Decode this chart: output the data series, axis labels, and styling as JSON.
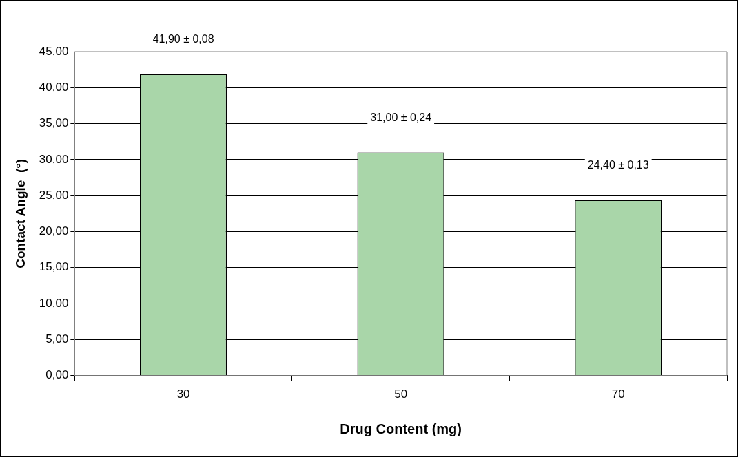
{
  "chart_data": {
    "type": "bar",
    "xlabel": "Drug Content (mg)",
    "ylabel": "Contact Angle  (°)",
    "categories": [
      "30",
      "50",
      "70"
    ],
    "values": [
      41.9,
      31.0,
      24.4
    ],
    "value_labels": [
      "41,90 ± 0,08",
      "31,00 ± 0,24",
      "24,40 ± 0,13"
    ],
    "color": "#a9d6a9",
    "ylim": [
      0,
      45
    ],
    "yticks": [
      {
        "value": 0,
        "label": "0,00"
      },
      {
        "value": 5,
        "label": "5,00"
      },
      {
        "value": 10,
        "label": "10,00"
      },
      {
        "value": 15,
        "label": "15,00"
      },
      {
        "value": 20,
        "label": "20,00"
      },
      {
        "value": 25,
        "label": "25,00"
      },
      {
        "value": 30,
        "label": "30,00"
      },
      {
        "value": 35,
        "label": "35,00"
      },
      {
        "value": 40,
        "label": "40,00"
      },
      {
        "value": 45,
        "label": "45,00"
      }
    ],
    "grid": "y",
    "legend": false
  }
}
